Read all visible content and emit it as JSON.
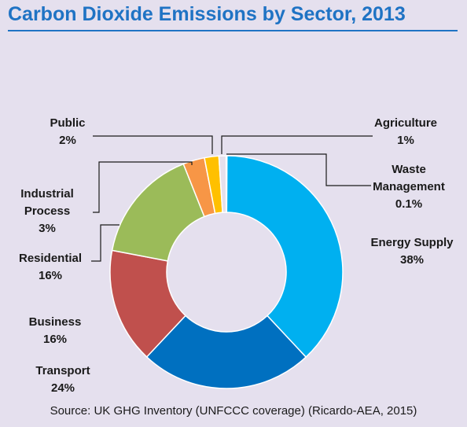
{
  "title": "Carbon Dioxide Emissions by Sector, 2013",
  "source": "Source: UK GHG Inventory (UNFCCC coverage) (Ricardo-AEA, 2015)",
  "chart_data": {
    "type": "pie",
    "variant": "donut",
    "title": "Carbon Dioxide Emissions by Sector, 2013",
    "slices": [
      {
        "label": "Energy Supply",
        "value_label": "38%",
        "value": 38,
        "color": "#00b0f0"
      },
      {
        "label": "Transport",
        "value_label": "24%",
        "value": 24,
        "color": "#0070c0"
      },
      {
        "label": "Business",
        "value_label": "16%",
        "value": 16,
        "color": "#c0504d"
      },
      {
        "label": "Residential",
        "value_label": "16%",
        "value": 16,
        "color": "#9bbb59"
      },
      {
        "label": "Industrial Process",
        "value_label": "3%",
        "value": 3,
        "color": "#f79646"
      },
      {
        "label": "Public",
        "value_label": "2%",
        "value": 2,
        "color": "#ffc000"
      },
      {
        "label": "Agriculture",
        "value_label": "1%",
        "value": 1,
        "color": "#e6e0ec"
      },
      {
        "label": "Waste Management",
        "value_label": "0.1%",
        "value": 0.1,
        "color": "#5b9bd5"
      }
    ],
    "labels": [
      {
        "lines": [
          "Energy Supply",
          "38%"
        ]
      },
      {
        "lines": [
          "Transport",
          "24%"
        ]
      },
      {
        "lines": [
          "Business",
          "16%"
        ]
      },
      {
        "lines": [
          "Residential",
          "16%"
        ]
      },
      {
        "lines": [
          "Industrial",
          "Process",
          "3%"
        ]
      },
      {
        "lines": [
          "Public",
          "2%"
        ]
      },
      {
        "lines": [
          "Agriculture",
          "1%"
        ]
      },
      {
        "lines": [
          "Waste",
          "Management",
          "0.1%"
        ]
      }
    ]
  }
}
